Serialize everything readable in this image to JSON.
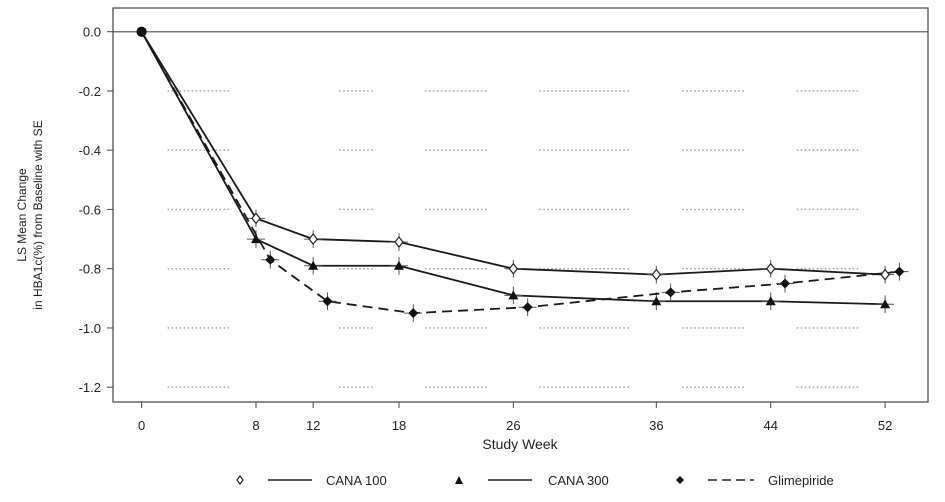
{
  "chart_data": {
    "type": "line",
    "title": "",
    "xlabel": "Study Week",
    "ylabel_lines": [
      "LS Mean Change",
      "in HBA1c(%) from Baseline with SE"
    ],
    "x_ticks": [
      0,
      8,
      12,
      18,
      26,
      36,
      44,
      52
    ],
    "y_ticks": [
      0.0,
      -0.2,
      -0.4,
      -0.6,
      -0.8,
      -1.0,
      -1.2
    ],
    "y_tick_labels": [
      "0.0",
      "-0.2",
      "-0.4",
      "-0.6",
      "-0.8",
      "-1.0",
      "-1.2"
    ],
    "xlim": [
      -2,
      55
    ],
    "ylim": [
      -1.25,
      0.08
    ],
    "grid": "horizontal-dotted",
    "reference_line": 0.0,
    "legend_position": "bottom",
    "series": [
      {
        "name": "CANA 100",
        "marker": "open-diamond",
        "dash": "solid",
        "x": [
          0,
          8,
          12,
          18,
          26,
          36,
          44,
          52
        ],
        "y": [
          0.0,
          -0.63,
          -0.7,
          -0.71,
          -0.8,
          -0.82,
          -0.8,
          -0.82
        ],
        "se": [
          0.0,
          0.03,
          0.03,
          0.03,
          0.03,
          0.03,
          0.03,
          0.03
        ]
      },
      {
        "name": "CANA 300",
        "marker": "filled-triangle",
        "dash": "solid",
        "x": [
          0,
          8,
          12,
          18,
          26,
          36,
          44,
          52
        ],
        "y": [
          0.0,
          -0.7,
          -0.79,
          -0.79,
          -0.89,
          -0.91,
          -0.91,
          -0.92
        ],
        "se": [
          0.0,
          0.03,
          0.03,
          0.03,
          0.03,
          0.03,
          0.03,
          0.03
        ]
      },
      {
        "name": "Glimepiride",
        "marker": "filled-diamond",
        "dash": "dashed",
        "x": [
          0,
          9,
          13,
          19,
          27,
          37,
          45,
          53
        ],
        "y": [
          0.0,
          -0.77,
          -0.91,
          -0.95,
          -0.93,
          -0.88,
          -0.85,
          -0.81
        ],
        "se": [
          0.0,
          0.03,
          0.03,
          0.03,
          0.03,
          0.03,
          0.03,
          0.03
        ]
      }
    ]
  }
}
